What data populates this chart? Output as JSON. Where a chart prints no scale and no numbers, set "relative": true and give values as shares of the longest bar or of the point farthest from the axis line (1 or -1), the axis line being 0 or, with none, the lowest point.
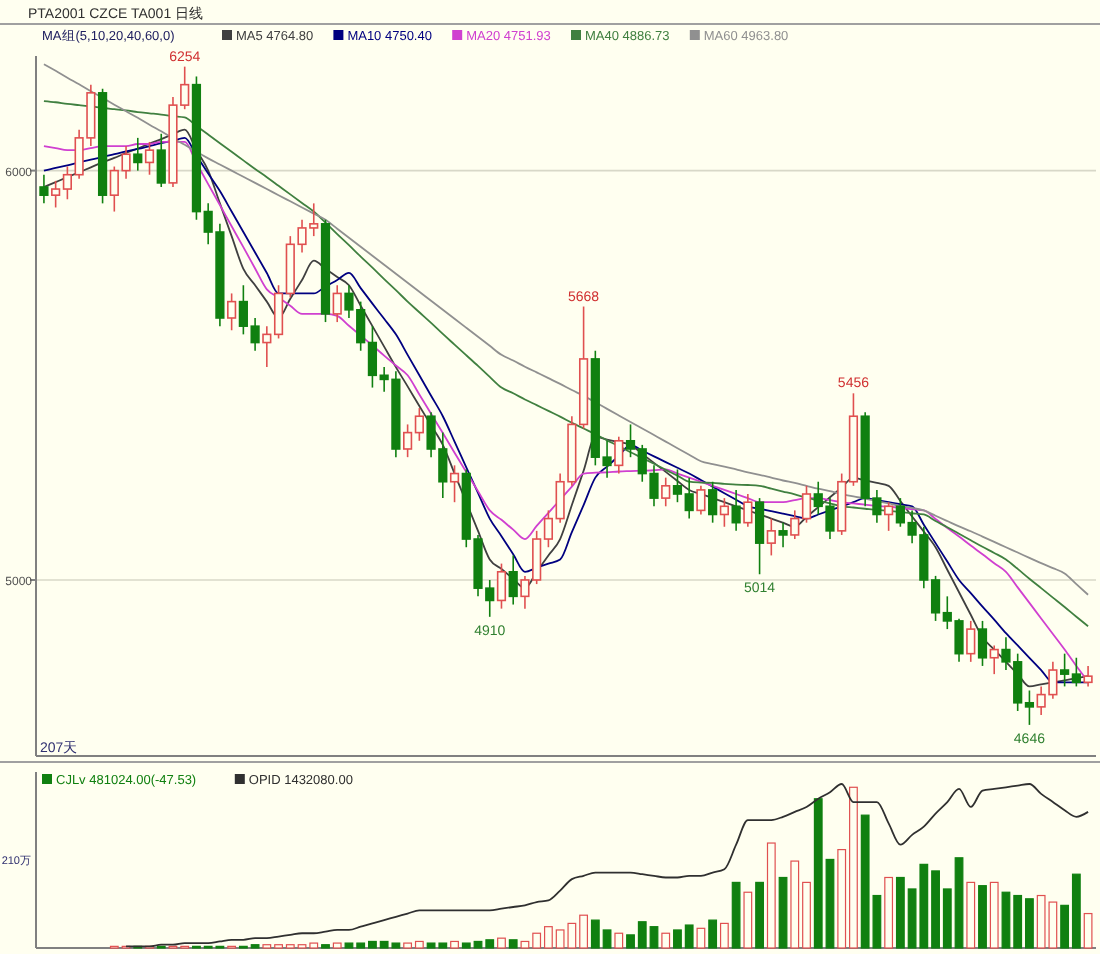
{
  "chart_data": [
    {
      "type": "candlestick",
      "title": "PTA2001  CZCE TA001  日线",
      "legend_title": "MA组(5,10,20,40,60,0)",
      "legend": "top left",
      "grid": "y",
      "ylim": [
        4570,
        6280
      ],
      "yticks": [
        5000,
        6000
      ],
      "annotations": [
        {
          "text": "6254",
          "y": 6254
        },
        {
          "text": "5668",
          "y": 5668
        },
        {
          "text": "5456",
          "y": 5456
        },
        {
          "text": "4910",
          "y": 4910
        },
        {
          "text": "5014",
          "y": 5014
        },
        {
          "text": "4646",
          "y": 4646
        },
        "207天"
      ],
      "categories": [
        null,
        null,
        null,
        null,
        null,
        null,
        null,
        null,
        null,
        null,
        null,
        null,
        null,
        null,
        null,
        null,
        null,
        null,
        null,
        null,
        null,
        null,
        null,
        null,
        null,
        null,
        null,
        null,
        null,
        null,
        null,
        null,
        null,
        null,
        null,
        null,
        null,
        null,
        null,
        null,
        null,
        null,
        null,
        null,
        null,
        null,
        null,
        null,
        null,
        null,
        null,
        null,
        null,
        null,
        null,
        null,
        null,
        null,
        null,
        null,
        null,
        null,
        null,
        null,
        null,
        null,
        null,
        null,
        null,
        null,
        null,
        null,
        null,
        null,
        null,
        null,
        null,
        null,
        null,
        null,
        null,
        null,
        null,
        null,
        null,
        null,
        null,
        null,
        null,
        null
      ],
      "ohlc": [
        [
          5960,
          5990,
          5920,
          5940
        ],
        [
          5940,
          5975,
          5910,
          5955
        ],
        [
          5955,
          6010,
          5930,
          5990
        ],
        [
          5990,
          6100,
          5980,
          6080
        ],
        [
          6080,
          6210,
          6060,
          6190
        ],
        [
          6190,
          6200,
          5920,
          5940
        ],
        [
          5940,
          6010,
          5900,
          6000
        ],
        [
          6000,
          6060,
          5980,
          6040
        ],
        [
          6040,
          6080,
          6000,
          6020
        ],
        [
          6020,
          6070,
          5990,
          6050
        ],
        [
          6050,
          6090,
          5960,
          5970
        ],
        [
          5970,
          6180,
          5960,
          6160
        ],
        [
          6160,
          6254,
          6150,
          6210
        ],
        [
          6210,
          6230,
          5880,
          5900
        ],
        [
          5900,
          5920,
          5820,
          5850
        ],
        [
          5850,
          5870,
          5620,
          5640
        ],
        [
          5640,
          5700,
          5610,
          5680
        ],
        [
          5680,
          5720,
          5600,
          5620
        ],
        [
          5620,
          5640,
          5560,
          5580
        ],
        [
          5580,
          5620,
          5520,
          5600
        ],
        [
          5600,
          5720,
          5590,
          5700
        ],
        [
          5700,
          5840,
          5690,
          5820
        ],
        [
          5820,
          5880,
          5800,
          5860
        ],
        [
          5860,
          5920,
          5840,
          5870
        ],
        [
          5870,
          5880,
          5630,
          5650
        ],
        [
          5650,
          5720,
          5630,
          5700
        ],
        [
          5700,
          5720,
          5640,
          5660
        ],
        [
          5660,
          5680,
          5560,
          5580
        ],
        [
          5580,
          5620,
          5470,
          5500
        ],
        [
          5500,
          5520,
          5460,
          5490
        ],
        [
          5490,
          5510,
          5300,
          5320
        ],
        [
          5320,
          5380,
          5300,
          5360
        ],
        [
          5360,
          5420,
          5340,
          5400
        ],
        [
          5400,
          5410,
          5300,
          5320
        ],
        [
          5320,
          5360,
          5200,
          5240
        ],
        [
          5240,
          5280,
          5190,
          5260
        ],
        [
          5260,
          5270,
          5080,
          5100
        ],
        [
          5100,
          5110,
          4960,
          4980
        ],
        [
          4980,
          5000,
          4910,
          4950
        ],
        [
          4950,
          5040,
          4930,
          5020
        ],
        [
          5020,
          5060,
          4940,
          4960
        ],
        [
          4960,
          5010,
          4930,
          5000
        ],
        [
          5000,
          5120,
          4990,
          5100
        ],
        [
          5100,
          5170,
          5080,
          5150
        ],
        [
          5150,
          5260,
          5140,
          5240
        ],
        [
          5240,
          5400,
          5230,
          5380
        ],
        [
          5380,
          5668,
          5370,
          5540
        ],
        [
          5540,
          5560,
          5280,
          5300
        ],
        [
          5300,
          5340,
          5250,
          5280
        ],
        [
          5280,
          5350,
          5260,
          5340
        ],
        [
          5340,
          5380,
          5300,
          5320
        ],
        [
          5320,
          5330,
          5240,
          5260
        ],
        [
          5260,
          5280,
          5180,
          5200
        ],
        [
          5200,
          5250,
          5180,
          5230
        ],
        [
          5230,
          5270,
          5190,
          5210
        ],
        [
          5210,
          5250,
          5150,
          5170
        ],
        [
          5170,
          5230,
          5160,
          5220
        ],
        [
          5220,
          5240,
          5140,
          5160
        ],
        [
          5160,
          5200,
          5130,
          5180
        ],
        [
          5180,
          5220,
          5120,
          5140
        ],
        [
          5140,
          5210,
          5130,
          5190
        ],
        [
          5190,
          5200,
          5014,
          5090
        ],
        [
          5090,
          5150,
          5060,
          5120
        ],
        [
          5120,
          5140,
          5080,
          5110
        ],
        [
          5110,
          5170,
          5100,
          5150
        ],
        [
          5150,
          5230,
          5140,
          5210
        ],
        [
          5210,
          5240,
          5160,
          5180
        ],
        [
          5180,
          5200,
          5100,
          5120
        ],
        [
          5120,
          5260,
          5110,
          5240
        ],
        [
          5240,
          5456,
          5230,
          5400
        ],
        [
          5400,
          5410,
          5180,
          5200
        ],
        [
          5200,
          5220,
          5140,
          5160
        ],
        [
          5160,
          5190,
          5120,
          5180
        ],
        [
          5180,
          5200,
          5130,
          5140
        ],
        [
          5140,
          5170,
          5090,
          5110
        ],
        [
          5110,
          5130,
          4980,
          5000
        ],
        [
          5000,
          5010,
          4900,
          4920
        ],
        [
          4920,
          4960,
          4880,
          4900
        ],
        [
          4900,
          4905,
          4800,
          4820
        ],
        [
          4820,
          4900,
          4800,
          4880
        ],
        [
          4880,
          4900,
          4790,
          4810
        ],
        [
          4810,
          4840,
          4770,
          4830
        ],
        [
          4830,
          4860,
          4780,
          4800
        ],
        [
          4800,
          4820,
          4680,
          4700
        ],
        [
          4700,
          4730,
          4646,
          4690
        ],
        [
          4690,
          4740,
          4670,
          4720
        ],
        [
          4720,
          4800,
          4710,
          4780
        ],
        [
          4780,
          4820,
          4740,
          4770
        ],
        [
          4770,
          4810,
          4740,
          4750
        ],
        [
          4750,
          4790,
          4740,
          4765
        ]
      ],
      "colors": [
        "#108010",
        "#e05050",
        "#e05050",
        "#e05050",
        "#e05050",
        "#108010",
        "#e05050",
        "#e05050",
        "#108010",
        "#e05050",
        "#108010",
        "#e05050",
        "#e05050",
        "#108010",
        "#108010",
        "#108010",
        "#e05050",
        "#108010",
        "#108010",
        "#e05050",
        "#e05050",
        "#e05050",
        "#e05050",
        "#e05050",
        "#108010",
        "#e05050",
        "#108010",
        "#108010",
        "#108010",
        "#108010",
        "#108010",
        "#e05050",
        "#e05050",
        "#108010",
        "#108010",
        "#e05050",
        "#108010",
        "#108010",
        "#108010",
        "#e05050",
        "#108010",
        "#e05050",
        "#e05050",
        "#e05050",
        "#e05050",
        "#e05050",
        "#e05050",
        "#108010",
        "#108010",
        "#e05050",
        "#108010",
        "#108010",
        "#108010",
        "#e05050",
        "#108010",
        "#108010",
        "#e05050",
        "#108010",
        "#e05050",
        "#108010",
        "#e05050",
        "#108010",
        "#e05050",
        "#108010",
        "#e05050",
        "#e05050",
        "#108010",
        "#108010",
        "#e05050",
        "#e05050",
        "#108010",
        "#108010",
        "#e05050",
        "#108010",
        "#108010",
        "#108010",
        "#108010",
        "#108010",
        "#108010",
        "#e05050",
        "#108010",
        "#e05050",
        "#108010",
        "#108010",
        "#108010",
        "#e05050",
        "#e05050",
        "#108010",
        "#108010",
        "#e05050"
      ],
      "series": [
        {
          "type": "line",
          "name": "MA5 4764.80",
          "color": "#404040",
          "values": [
            5960,
            5972,
            5984,
            5996,
            6008,
            6020,
            6031,
            6043,
            6054,
            6066,
            6077,
            6089,
            6100,
            6050,
            6000,
            5920,
            5840,
            5760,
            5720,
            5680,
            5640,
            5687,
            5733,
            5780,
            5760,
            5740,
            5720,
            5670,
            5620,
            5570,
            5520,
            5473,
            5425,
            5378,
            5330,
            5260,
            5190,
            5120,
            5050,
            5027,
            5003,
            4980,
            5020,
            5060,
            5100,
            5183,
            5267,
            5350,
            5343,
            5337,
            5330,
            5308,
            5286,
            5264,
            5242,
            5220,
            5210,
            5200,
            5190,
            5180,
            5170,
            5160,
            5150,
            5140,
            5130,
            5154,
            5178,
            5202,
            5226,
            5250,
            5243,
            5237,
            5230,
            5193,
            5155,
            5118,
            5080,
            5025,
            4970,
            4915,
            4860,
            4830,
            4800,
            4770,
            4740,
            4745,
            4750,
            4755,
            4760,
            4765
          ]
        },
        {
          "type": "line",
          "name": "MA10 4750.40",
          "color": "#000080",
          "values": [
            6000,
            6007,
            6013,
            6020,
            6027,
            6033,
            6040,
            6047,
            6053,
            6060,
            6067,
            6073,
            6080,
            6037,
            5993,
            5950,
            5900,
            5850,
            5800,
            5750,
            5700,
            5700,
            5700,
            5700,
            5717,
            5733,
            5750,
            5713,
            5675,
            5638,
            5600,
            5550,
            5500,
            5450,
            5400,
            5338,
            5275,
            5213,
            5150,
            5107,
            5063,
            5020,
            5030,
            5040,
            5050,
            5117,
            5183,
            5250,
            5277,
            5303,
            5330,
            5316,
            5302,
            5288,
            5274,
            5260,
            5244,
            5228,
            5212,
            5196,
            5180,
            5174,
            5168,
            5162,
            5156,
            5150,
            5160,
            5170,
            5180,
            5190,
            5200,
            5195,
            5190,
            5185,
            5180,
            5135,
            5090,
            5045,
            5000,
            4968,
            4935,
            4903,
            4870,
            4840,
            4810,
            4780,
            4750,
            4750,
            4750,
            4750
          ]
        },
        {
          "type": "line",
          "name": "MA20 4751.93",
          "color": "#d040d0",
          "values": [
            6060,
            6055,
            6050,
            6050,
            6055,
            6060,
            6060,
            6060,
            6065,
            6065,
            6070,
            6070,
            6070,
            6019,
            5967,
            5916,
            5864,
            5813,
            5761,
            5710,
            5690,
            5670,
            5650,
            5650,
            5650,
            5645,
            5621,
            5597,
            5573,
            5548,
            5524,
            5500,
            5453,
            5406,
            5359,
            5311,
            5264,
            5217,
            5170,
            5147,
            5123,
            5100,
            5132,
            5164,
            5196,
            5228,
            5260,
            5262,
            5263,
            5265,
            5266,
            5267,
            5268,
            5270,
            5260,
            5250,
            5240,
            5230,
            5220,
            5210,
            5200,
            5190,
            5190,
            5190,
            5195,
            5200,
            5200,
            5195,
            5190,
            5187,
            5184,
            5181,
            5179,
            5176,
            5173,
            5170,
            5149,
            5127,
            5106,
            5084,
            5063,
            5041,
            5020,
            4982,
            4944,
            4906,
            4868,
            4830,
            4790,
            4752
          ]
        },
        {
          "type": "line",
          "name": "MA40 4886.73",
          "color": "#408040",
          "values": [
            6170,
            6167,
            6163,
            6160,
            6157,
            6153,
            6150,
            6147,
            6143,
            6140,
            6137,
            6133,
            6130,
            6109,
            6088,
            6067,
            6046,
            6025,
            6004,
            5984,
            5963,
            5942,
            5921,
            5900,
            5873,
            5845,
            5818,
            5790,
            5763,
            5735,
            5708,
            5680,
            5654,
            5628,
            5601,
            5575,
            5549,
            5523,
            5496,
            5470,
            5456,
            5441,
            5427,
            5413,
            5399,
            5384,
            5370,
            5356,
            5341,
            5327,
            5312,
            5298,
            5284,
            5269,
            5255,
            5240,
            5238,
            5237,
            5235,
            5233,
            5232,
            5230,
            5223,
            5216,
            5209,
            5201,
            5194,
            5187,
            5180,
            5177,
            5174,
            5171,
            5169,
            5166,
            5163,
            5160,
            5144,
            5129,
            5113,
            5097,
            5081,
            5066,
            5050,
            5027,
            5003,
            4980,
            4957,
            4934,
            4910,
            4887
          ]
        },
        {
          "type": "line",
          "name": "MA60 4963.80",
          "color": "#909090",
          "values": [
            6260,
            6244,
            6227,
            6211,
            6194,
            6178,
            6161,
            6145,
            6129,
            6112,
            6096,
            6079,
            6063,
            6046,
            6030,
            6015,
            6000,
            5985,
            5970,
            5955,
            5940,
            5925,
            5910,
            5895,
            5880,
            5858,
            5836,
            5814,
            5792,
            5770,
            5748,
            5726,
            5704,
            5682,
            5660,
            5638,
            5616,
            5594,
            5572,
            5550,
            5536,
            5521,
            5507,
            5493,
            5479,
            5464,
            5450,
            5434,
            5418,
            5402,
            5386,
            5370,
            5354,
            5338,
            5322,
            5306,
            5290,
            5283,
            5277,
            5270,
            5263,
            5257,
            5250,
            5243,
            5237,
            5230,
            5223,
            5217,
            5210,
            5204,
            5199,
            5193,
            5187,
            5181,
            5176,
            5170,
            5157,
            5144,
            5131,
            5119,
            5106,
            5093,
            5080,
            5067,
            5054,
            5041,
            5029,
            5016,
            4990,
            4964
          ]
        }
      ]
    },
    {
      "type": "bar",
      "relative": true,
      "legend": "top left",
      "annotations": [
        "210万"
      ],
      "categories": [
        null,
        null,
        null,
        null,
        null,
        null,
        null,
        null,
        null,
        null,
        null,
        null,
        null,
        null,
        null,
        null,
        null,
        null,
        null,
        null,
        null,
        null,
        null,
        null,
        null,
        null,
        null,
        null,
        null,
        null,
        null,
        null,
        null,
        null,
        null,
        null,
        null,
        null,
        null,
        null,
        null,
        null,
        null,
        null,
        null,
        null,
        null,
        null,
        null,
        null,
        null,
        null,
        null,
        null,
        null,
        null,
        null,
        null,
        null,
        null,
        null,
        null,
        null,
        null,
        null,
        null,
        null,
        null,
        null,
        null,
        null,
        null,
        null,
        null,
        null,
        null,
        null,
        null,
        null,
        null,
        null,
        null,
        null,
        null,
        null,
        null,
        null,
        null,
        null,
        null
      ],
      "series": [
        {
          "type": "bar",
          "name": "CJLv 481024.00(-47.53)",
          "color": "#108010",
          "colors": [
            null,
            null,
            null,
            null,
            null,
            null,
            "#e05050",
            "#e05050",
            "#108010",
            "#e05050",
            "#108010",
            "#e05050",
            "#e05050",
            "#108010",
            "#108010",
            "#108010",
            "#e05050",
            "#108010",
            "#108010",
            "#e05050",
            "#e05050",
            "#e05050",
            "#e05050",
            "#e05050",
            "#108010",
            "#e05050",
            "#108010",
            "#108010",
            "#108010",
            "#108010",
            "#108010",
            "#e05050",
            "#e05050",
            "#108010",
            "#108010",
            "#e05050",
            "#108010",
            "#108010",
            "#108010",
            "#e05050",
            "#108010",
            "#e05050",
            "#e05050",
            "#e05050",
            "#e05050",
            "#e05050",
            "#e05050",
            "#108010",
            "#108010",
            "#e05050",
            "#108010",
            "#108010",
            "#108010",
            "#e05050",
            "#108010",
            "#108010",
            "#e05050",
            "#108010",
            "#e05050",
            "#108010",
            "#e05050",
            "#108010",
            "#e05050",
            "#108010",
            "#e05050",
            "#e05050",
            "#108010",
            "#108010",
            "#e05050",
            "#e05050",
            "#108010",
            "#108010",
            "#e05050",
            "#108010",
            "#108010",
            "#108010",
            "#108010",
            "#108010",
            "#108010",
            "#e05050",
            "#108010",
            "#e05050",
            "#108010",
            "#108010",
            "#108010",
            "#e05050",
            "#e05050",
            "#108010",
            "#108010",
            "#e05050"
          ],
          "values": [
            null,
            null,
            null,
            null,
            null,
            null,
            0.01,
            0.01,
            0.01,
            0.01,
            0.01,
            0.01,
            0.01,
            0.01,
            0.01,
            0.01,
            0.01,
            0.01,
            0.02,
            0.02,
            0.02,
            0.02,
            0.02,
            0.03,
            0.02,
            0.03,
            0.03,
            0.03,
            0.04,
            0.04,
            0.03,
            0.03,
            0.04,
            0.03,
            0.03,
            0.04,
            0.03,
            0.04,
            0.05,
            0.06,
            0.05,
            0.04,
            0.09,
            0.13,
            0.11,
            0.15,
            0.2,
            0.17,
            0.11,
            0.09,
            0.08,
            0.16,
            0.13,
            0.09,
            0.11,
            0.14,
            0.12,
            0.17,
            0.15,
            0.4,
            0.34,
            0.4,
            0.64,
            0.43,
            0.53,
            0.4,
            0.91,
            0.54,
            0.6,
            0.98,
            0.81,
            0.32,
            0.43,
            0.43,
            0.36,
            0.51,
            0.47,
            0.36,
            0.55,
            0.4,
            0.38,
            0.4,
            0.34,
            0.32,
            0.3,
            0.32,
            0.28,
            0.26,
            0.45,
            0.21
          ]
        },
        {
          "type": "line",
          "name": "OPID 1432080.00",
          "color": "#303030",
          "values": [
            null,
            null,
            null,
            null,
            null,
            null,
            null,
            0.01,
            0.01,
            0.01,
            0.02,
            0.02,
            0.03,
            0.03,
            0.03,
            0.04,
            0.05,
            0.05,
            0.06,
            0.06,
            0.07,
            0.08,
            0.09,
            0.09,
            0.1,
            0.11,
            0.11,
            0.13,
            0.15,
            0.17,
            0.19,
            0.21,
            0.23,
            0.23,
            0.23,
            0.23,
            0.23,
            0.23,
            0.23,
            0.24,
            0.25,
            0.26,
            0.28,
            0.29,
            0.35,
            0.42,
            0.44,
            0.46,
            0.46,
            0.46,
            0.46,
            0.45,
            0.44,
            0.43,
            0.43,
            0.44,
            0.44,
            0.46,
            0.48,
            0.63,
            0.78,
            0.78,
            0.78,
            0.8,
            0.83,
            0.86,
            0.91,
            0.95,
            1,
            0.89,
            0.89,
            0.89,
            0.76,
            0.63,
            0.69,
            0.74,
            0.82,
            0.89,
            0.97,
            0.86,
            0.96,
            0.97,
            0.98,
            0.99,
            1,
            0.94,
            0.89,
            0.84,
            0.8,
            0.83
          ]
        }
      ]
    }
  ]
}
